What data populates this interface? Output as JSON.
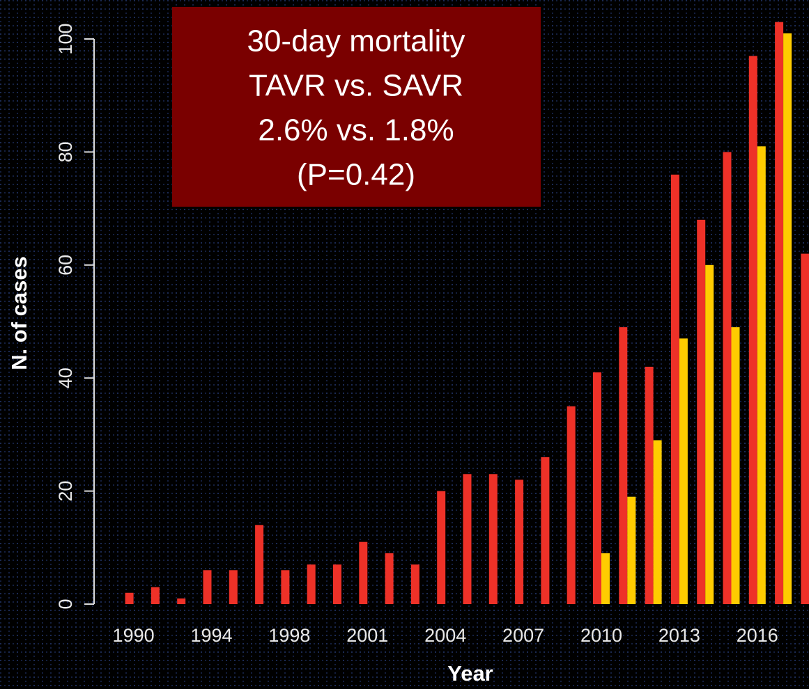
{
  "chart_data": {
    "type": "bar",
    "ylabel": "N. of cases",
    "xlabel": "Year",
    "annotation": [
      "30-day mortality",
      "TAVR vs. SAVR",
      "2.6% vs. 1.8%",
      "(P=0.42)"
    ],
    "categories": [
      "1990",
      null,
      null,
      "1994",
      null,
      null,
      "1998",
      null,
      null,
      "2001",
      null,
      null,
      "2004",
      null,
      null,
      "2007",
      null,
      null,
      "2010",
      null,
      null,
      "2013",
      null,
      null,
      "2016",
      null,
      null
    ],
    "series": [
      {
        "color": "#ee3128",
        "values": [
          2,
          3,
          1,
          6,
          6,
          14,
          6,
          7,
          7,
          11,
          9,
          7,
          20,
          23,
          23,
          22,
          26,
          35,
          41,
          49,
          42,
          76,
          68,
          80,
          97,
          103,
          62
        ]
      },
      {
        "color": "#ffcc00",
        "values": [
          0,
          0,
          0,
          0,
          0,
          0,
          0,
          0,
          0,
          0,
          0,
          0,
          0,
          0,
          0,
          0,
          0,
          0,
          9,
          19,
          29,
          47,
          60,
          49,
          81,
          101,
          null
        ]
      }
    ],
    "ylim": [
      0,
      100
    ],
    "yticks": [
      0,
      20,
      40,
      60,
      80,
      100
    ]
  }
}
